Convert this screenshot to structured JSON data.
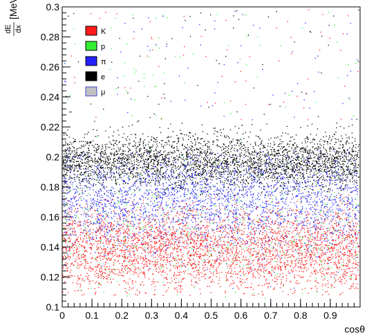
{
  "chart_data": {
    "type": "scatter",
    "title": "",
    "xlabel": "cosθ",
    "ylabel": {
      "fraction_num": "dE",
      "fraction_den": "dx",
      "unit": "[MeV]"
    },
    "xlim": [
      0,
      1
    ],
    "ylim": [
      0.1,
      0.3
    ],
    "x_ticks": [
      0,
      0.1,
      0.2,
      0.3,
      0.4,
      0.5,
      0.6,
      0.7,
      0.8,
      0.9
    ],
    "x_tick_labels": [
      "0",
      "0.1",
      "0.2",
      "0.3",
      "0.4",
      "0.5",
      "0.6",
      "0.7",
      "0.8",
      "0.9"
    ],
    "y_ticks": [
      0.1,
      0.12,
      0.14,
      0.16,
      0.18,
      0.2,
      0.22,
      0.24,
      0.26,
      0.28,
      0.3
    ],
    "y_tick_labels": [
      "0.1",
      "0.12",
      "0.14",
      "0.16",
      "0.18",
      "0.2",
      "0.22",
      "0.24",
      "0.26",
      "0.28",
      "0.3"
    ],
    "grid": false,
    "legend_placement": "top-left",
    "series": [
      {
        "name": "K",
        "color": "#ff1a1a",
        "y_center": 0.138,
        "y_spread": 0.014,
        "y_min": 0.108,
        "y_max": 0.175,
        "points": 3600
      },
      {
        "name": "p",
        "color": "#33ee33",
        "y_center": 0.15,
        "y_spread": 0.022,
        "y_min": 0.105,
        "y_max": 0.215,
        "points": 500
      },
      {
        "name": "π",
        "color": "#2222ff",
        "y_center": 0.17,
        "y_spread": 0.016,
        "y_min": 0.11,
        "y_max": 0.205,
        "points": 2600
      },
      {
        "name": "e",
        "color": "#000000",
        "y_center": 0.197,
        "y_spread": 0.009,
        "y_min": 0.175,
        "y_max": 0.225,
        "points": 3400
      },
      {
        "name": "μ",
        "color": "#c0c0c0",
        "y_center": 0.16,
        "y_spread": 0.02,
        "y_min": 0.11,
        "y_max": 0.205,
        "points": 250
      }
    ]
  }
}
